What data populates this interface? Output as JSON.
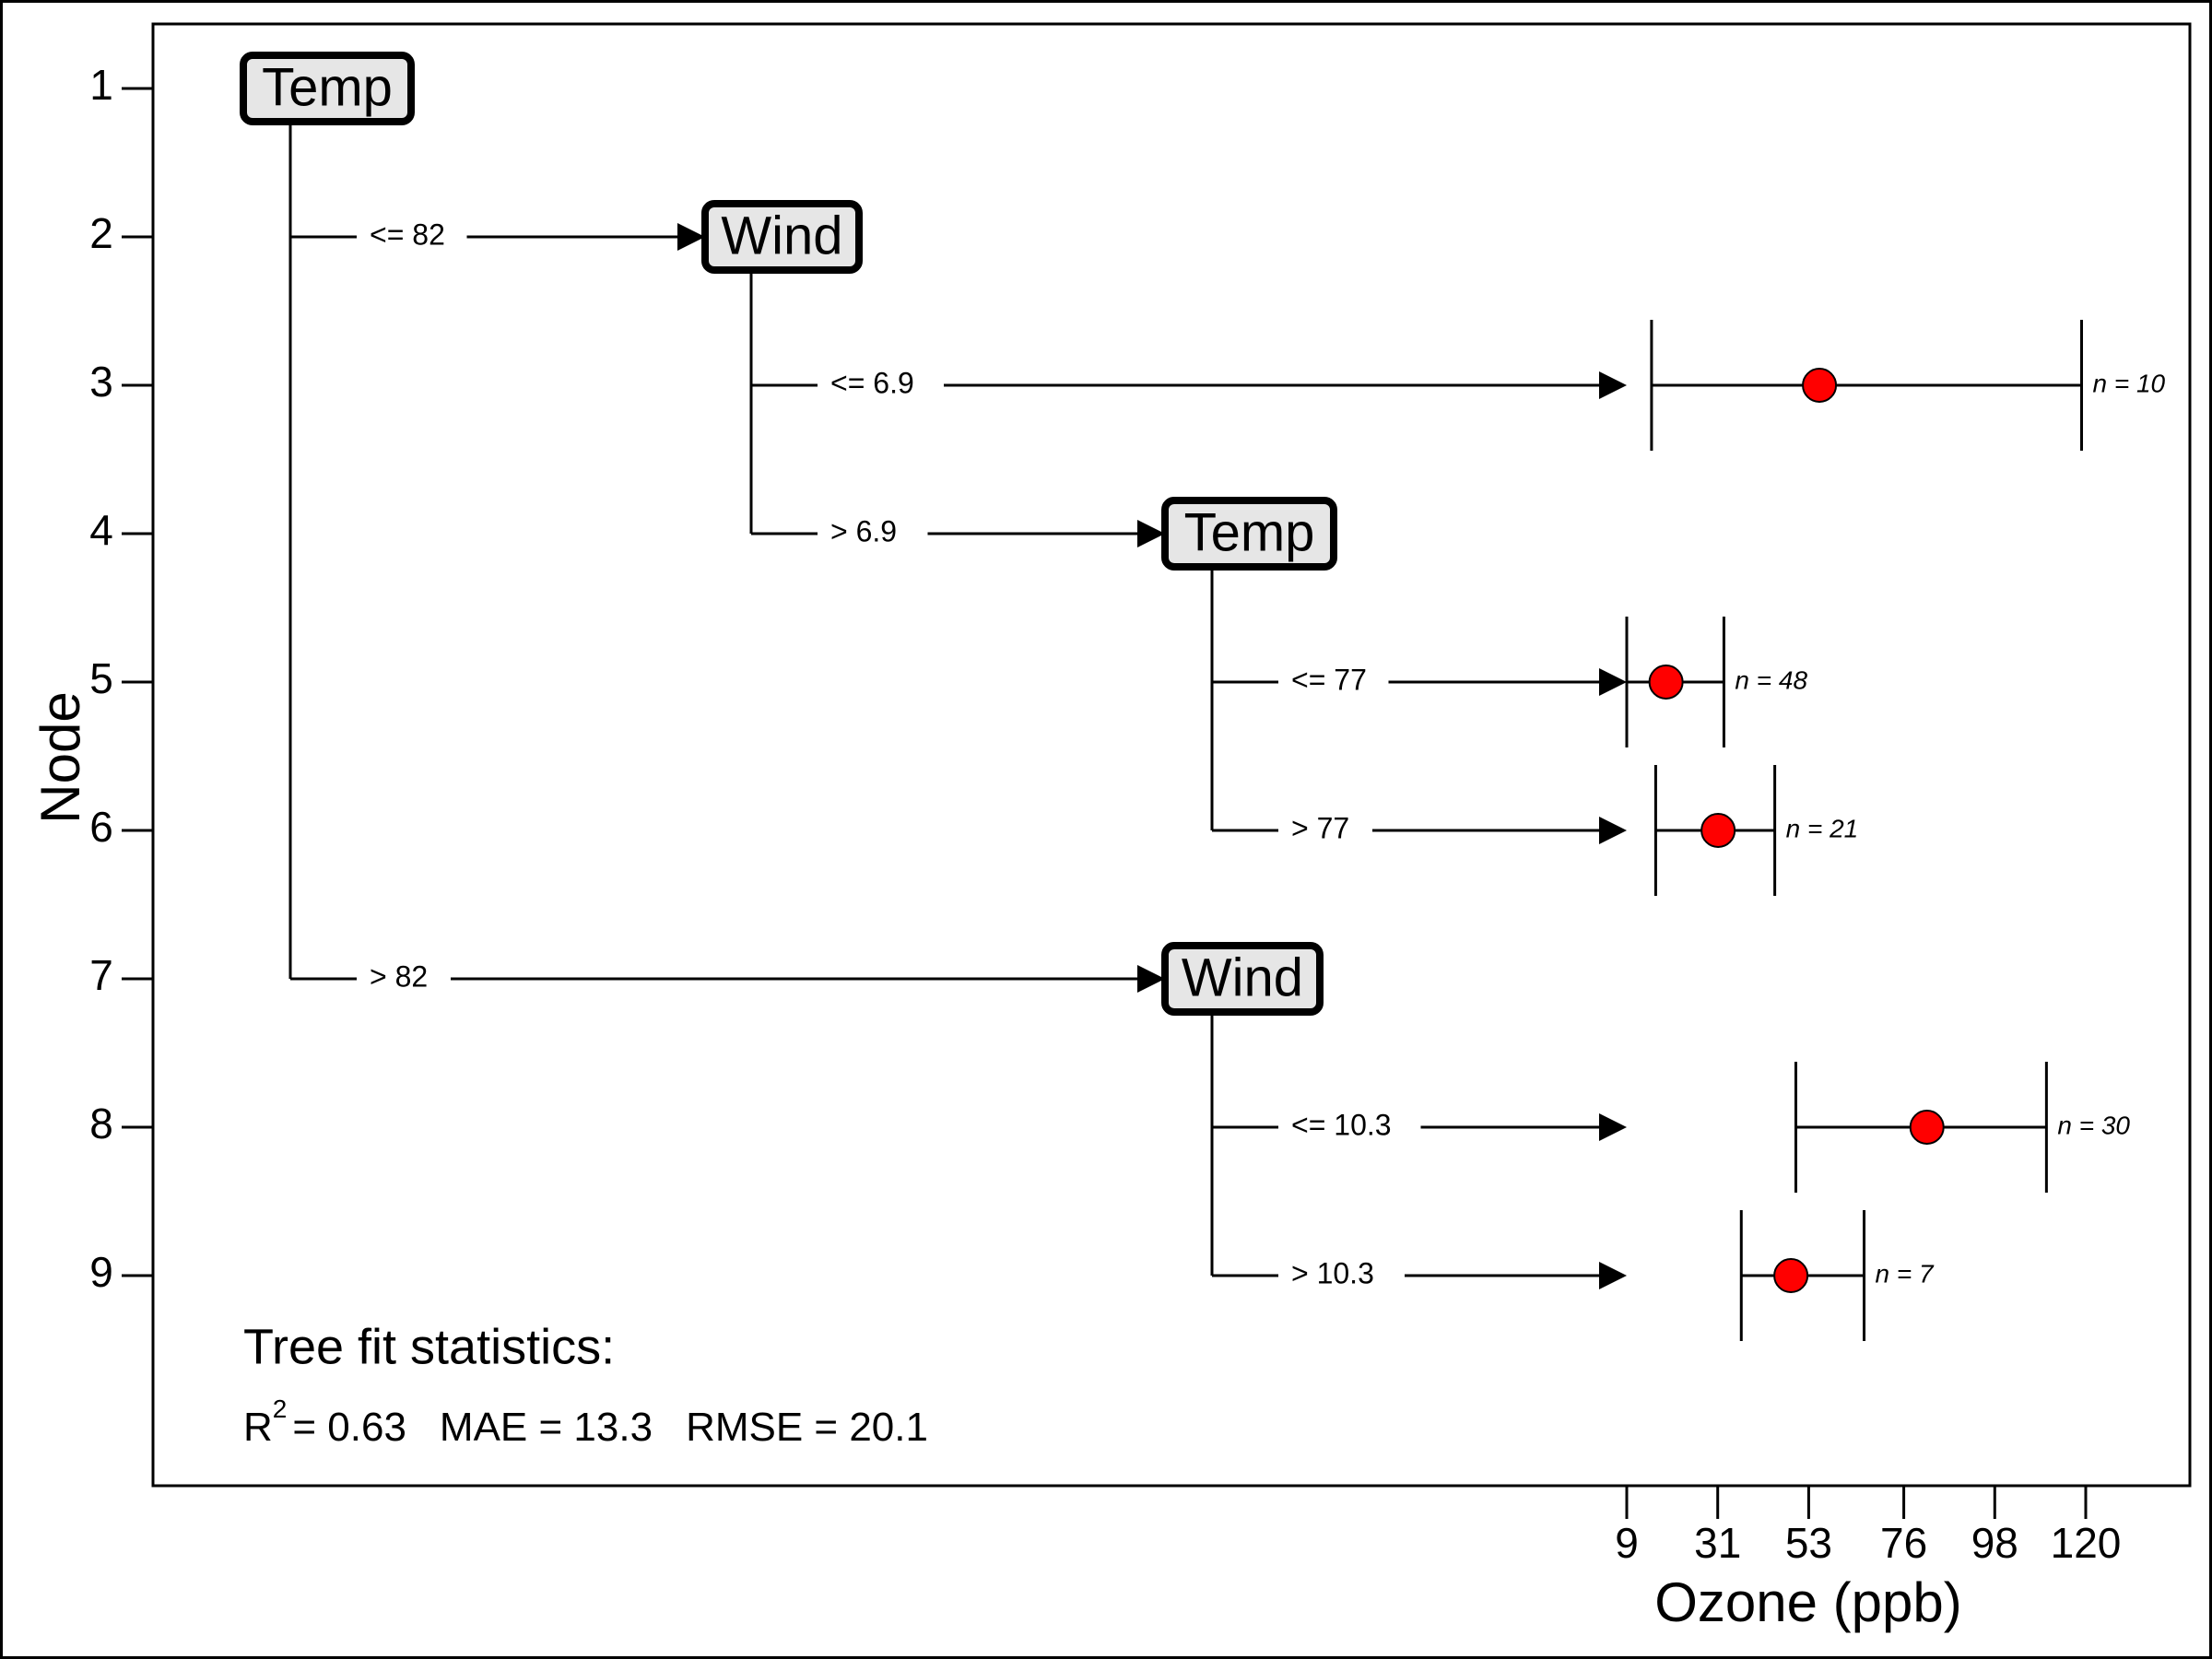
{
  "chart_data": {
    "type": "regression-tree",
    "ylabel": "Node",
    "xlabel": "Ozone (ppb)",
    "node_ticks": [
      "1",
      "2",
      "3",
      "4",
      "5",
      "6",
      "7",
      "8",
      "9"
    ],
    "x_ticks": [
      9,
      31,
      53,
      76,
      98,
      120
    ],
    "xlim": [
      9,
      120
    ],
    "split_nodes": [
      {
        "node": 1,
        "variable": "Temp"
      },
      {
        "node": 2,
        "variable": "Wind"
      },
      {
        "node": 4,
        "variable": "Temp"
      },
      {
        "node": 7,
        "variable": "Wind"
      }
    ],
    "branches": [
      {
        "from": 1,
        "to": 2,
        "label": "<= 82"
      },
      {
        "from": 1,
        "to": 7,
        "label": "> 82"
      },
      {
        "from": 2,
        "to": 3,
        "label": "<= 6.9"
      },
      {
        "from": 2,
        "to": 4,
        "label": "> 6.9"
      },
      {
        "from": 4,
        "to": 5,
        "label": "<= 77"
      },
      {
        "from": 4,
        "to": 6,
        "label": "> 77"
      },
      {
        "from": 7,
        "to": 8,
        "label": "<= 10.3"
      },
      {
        "from": 7,
        "to": 9,
        "label": "> 10.3"
      }
    ],
    "leaves": [
      {
        "node": 3,
        "mean": 55.6,
        "low": 15.0,
        "high": 119.0,
        "n_label": "n = 10"
      },
      {
        "node": 5,
        "mean": 18.5,
        "low": 9.0,
        "high": 32.5,
        "n_label": "n = 48"
      },
      {
        "node": 6,
        "mean": 31.1,
        "low": 16.0,
        "high": 44.8,
        "n_label": "n = 21"
      },
      {
        "node": 8,
        "mean": 81.6,
        "low": 49.9,
        "high": 110.5,
        "n_label": "n = 30"
      },
      {
        "node": 9,
        "mean": 48.7,
        "low": 36.7,
        "high": 66.4,
        "n_label": "n = 7"
      }
    ],
    "stats": {
      "title": "Tree fit statistics:",
      "r2_label": "R",
      "r2_sup": "2",
      "r2_value": "= 0.63",
      "mae": "MAE = 13.3",
      "rmse": "RMSE = 20.1"
    }
  }
}
